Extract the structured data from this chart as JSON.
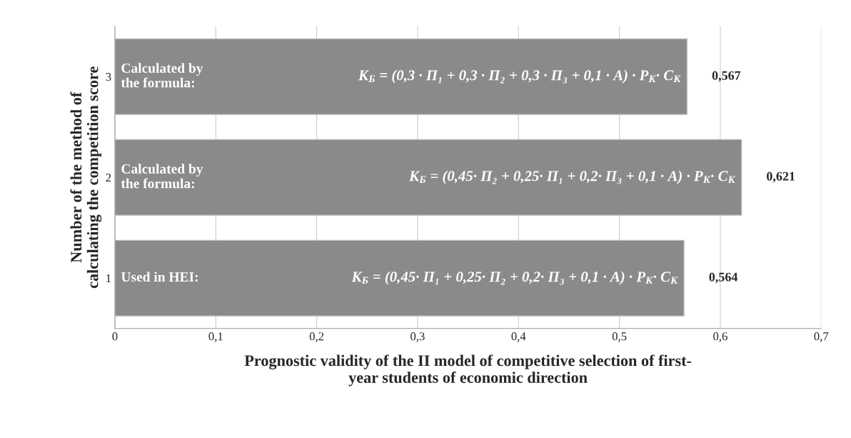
{
  "chart_data": {
    "type": "bar",
    "orientation": "horizontal",
    "categories": [
      "3",
      "2",
      "1"
    ],
    "values": [
      0.567,
      0.621,
      0.564
    ],
    "color": "#8a8a8a",
    "value_labels": [
      "0,567",
      "0,621",
      "0,564"
    ],
    "xlim": [
      0,
      0.7
    ],
    "xticks": [
      0,
      {
        "value": 0.1,
        "label": "0,1"
      },
      {
        "value": 0.2,
        "label": "0,2"
      },
      {
        "value": 0.3,
        "label": "0,3"
      },
      {
        "value": 0.4,
        "label": "0,4"
      },
      {
        "value": 0.5,
        "label": "0,5"
      },
      {
        "value": 0.6,
        "label": "0,6"
      },
      {
        "value": 0.7,
        "label": "0,7"
      }
    ],
    "xlabel": "Prognostic validity of the II model of competitive selection of first-\nyear students of economic direction",
    "ylabel": "Number of the method of\ncalculating the competition score",
    "grid": "x",
    "legend": false,
    "annotations": [
      "Calculated by\nthe formula:",
      "К$_{Б}$ = (0,3 · П₁ + 0,3 · П₂ + 0,3 · П₃ + 0,1 · А) · Р$_{К}$· С$_{К}$",
      "Calculated by\nthe formula:",
      "К$_{Б}$ = (0,45· П₂ + 0,25· П₁ + 0,2· П₃ + 0,1 · А) · Р$_{К}$· С$_{К}$",
      "Used in HEI:",
      "К$_{Б}$ = (0,45· П₁ + 0,25· П₂ + 0,2· П₃ + 0,1 · А) · Р$_{К}$· С$_{К}$"
    ]
  }
}
